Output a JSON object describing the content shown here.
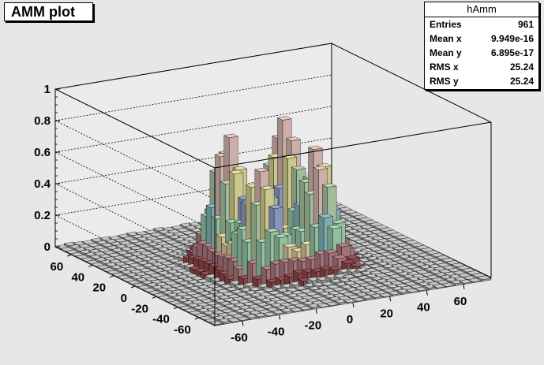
{
  "title": "AMM plot",
  "stats": {
    "name": "hAmm",
    "rows": [
      {
        "label": "Entries",
        "value": "961"
      },
      {
        "label": "Mean x",
        "value": "9.949e-16"
      },
      {
        "label": "Mean y",
        "value": "6.895e-17"
      },
      {
        "label": "RMS x",
        "value": "25.24"
      },
      {
        "label": "RMS y",
        "value": "25.24"
      }
    ]
  },
  "chart_data": {
    "type": "lego3d",
    "title": "AMM plot",
    "z_ticks": [
      "0",
      "0.2",
      "0.4",
      "0.6",
      "0.8",
      "1"
    ],
    "x_ticks": [
      "-60",
      "-40",
      "-20",
      "0",
      "20",
      "40",
      "60"
    ],
    "y_ticks": [
      "-60",
      "-40",
      "-20",
      "0",
      "20",
      "40",
      "60"
    ],
    "xlim": [
      -75,
      75
    ],
    "ylim": [
      -75,
      75
    ],
    "zlim": [
      0,
      1
    ],
    "peaks": [
      {
        "x": -15,
        "y": 15,
        "z": 0.67
      },
      {
        "x": 15,
        "y": 15,
        "z": 0.72
      },
      {
        "x": -15,
        "y": -15,
        "z": 0.55
      },
      {
        "x": 15,
        "y": -15,
        "z": 0.63
      }
    ],
    "palette": [
      "#9a4f52",
      "#b8848a",
      "#e8d9a8",
      "#a6d9b5",
      "#8fc4c9",
      "#9ca8d6",
      "#b8d6b0",
      "#e8e2a2",
      "#e8c7c0"
    ]
  }
}
